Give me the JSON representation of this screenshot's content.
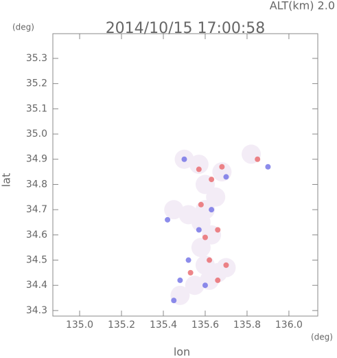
{
  "chart_data": {
    "type": "scatter",
    "title": "2014/10/15 17:00:58",
    "subtitle": "ALT(km) 2.0",
    "y_unit": "(deg)",
    "x_unit": "(deg)",
    "xlabel": "lon",
    "ylabel": "lat",
    "xlim": [
      134.872,
      136.138
    ],
    "ylim": [
      34.278,
      35.398
    ],
    "xticks": [
      {
        "value": 135,
        "label": "135.0"
      },
      135.2,
      135.4,
      135.6,
      135.8,
      {
        "value": 136,
        "label": "136.0"
      }
    ],
    "yticks": [
      34.3,
      34.4,
      34.5,
      34.6,
      34.7,
      34.8,
      34.9,
      {
        "value": 35,
        "label": "35.0"
      },
      35.1,
      35.2,
      35.3
    ],
    "grid": false,
    "series": [
      {
        "color": "#f3ecf6",
        "x": [
          135.62,
          135.6,
          135.66,
          135.55,
          135.58,
          135.63,
          135.58,
          135.6,
          135.52,
          135.65,
          135.6,
          135.68,
          135.5,
          135.57,
          135.82,
          135.48,
          135.7,
          135.45
        ],
        "y": [
          34.42,
          34.48,
          34.45,
          34.4,
          34.55,
          34.6,
          34.65,
          34.7,
          34.68,
          34.75,
          34.8,
          34.85,
          34.9,
          34.88,
          34.92,
          34.36,
          34.47,
          34.7
        ]
      },
      {
        "color": "#e8666a",
        "x": [
          135.62,
          135.7,
          135.6,
          135.63,
          135.68,
          135.58,
          135.53,
          135.66,
          135.85,
          135.66,
          135.57
        ],
        "y": [
          34.5,
          34.48,
          34.59,
          34.82,
          34.87,
          34.72,
          34.45,
          34.42,
          34.9,
          34.62,
          34.86
        ]
      },
      {
        "color": "#6f6fe6",
        "x": [
          135.45,
          135.57,
          135.52,
          135.9,
          135.5,
          135.63,
          135.48,
          135.6,
          135.42,
          135.7
        ],
        "y": [
          34.34,
          34.62,
          34.5,
          34.87,
          34.9,
          34.7,
          34.42,
          34.4,
          34.66,
          34.83
        ]
      }
    ]
  }
}
